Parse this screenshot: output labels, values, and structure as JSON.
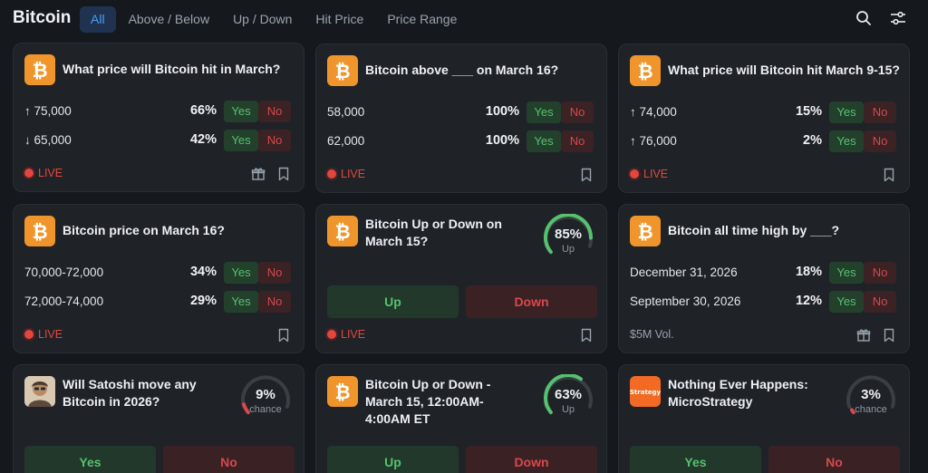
{
  "header": {
    "title": "Bitcoin",
    "tabs": [
      "All",
      "Above / Below",
      "Up / Down",
      "Hit Price",
      "Price Range"
    ]
  },
  "colors": {
    "accent": "#4d9cf2",
    "yes": "#56c16e",
    "no": "#d8484c",
    "live": "#e2463c",
    "bitcoin": "#f0952b"
  },
  "labels": {
    "yes": "Yes",
    "no": "No",
    "live": "LIVE",
    "up": "Up",
    "down": "Down",
    "chance": "chance"
  },
  "cards": [
    {
      "title": "What price will Bitcoin hit in March?",
      "rows": [
        {
          "label": "↑ 75,000",
          "pct": "66%"
        },
        {
          "label": "↓ 65,000",
          "pct": "42%"
        }
      ]
    },
    {
      "title": "Bitcoin above ___ on March 16?",
      "rows": [
        {
          "label": "58,000",
          "pct": "100%"
        },
        {
          "label": "62,000",
          "pct": "100%"
        }
      ]
    },
    {
      "title": "What price will Bitcoin hit March 9-15?",
      "rows": [
        {
          "label": "↑ 74,000",
          "pct": "15%"
        },
        {
          "label": "↑ 76,000",
          "pct": "2%"
        }
      ]
    },
    {
      "title": "Bitcoin price on March 16?",
      "rows": [
        {
          "label": "70,000-72,000",
          "pct": "34%"
        },
        {
          "label": "72,000-74,000",
          "pct": "29%"
        }
      ]
    },
    {
      "title": "Bitcoin Up or Down on March 15?",
      "gauge": {
        "value": "85%",
        "label": "Up",
        "fraction": 0.85
      }
    },
    {
      "title": "Bitcoin all time high by ___?",
      "rows": [
        {
          "label": "December 31, 2026",
          "pct": "18%"
        },
        {
          "label": "September 30, 2026",
          "pct": "12%"
        }
      ],
      "volume": "$5M Vol."
    },
    {
      "title": "Will Satoshi move any Bitcoin in 2026?",
      "gauge": {
        "value": "9%",
        "label": "chance",
        "fraction": 0.09
      }
    },
    {
      "title": "Bitcoin Up or Down - March 15, 12:00AM-4:00AM ET",
      "gauge": {
        "value": "63%",
        "label": "Up",
        "fraction": 0.63
      }
    },
    {
      "title": "Nothing Ever Happens: MicroStrategy",
      "gauge": {
        "value": "3%",
        "label": "chance",
        "fraction": 0.03
      },
      "logo_text": "Strategy"
    }
  ]
}
